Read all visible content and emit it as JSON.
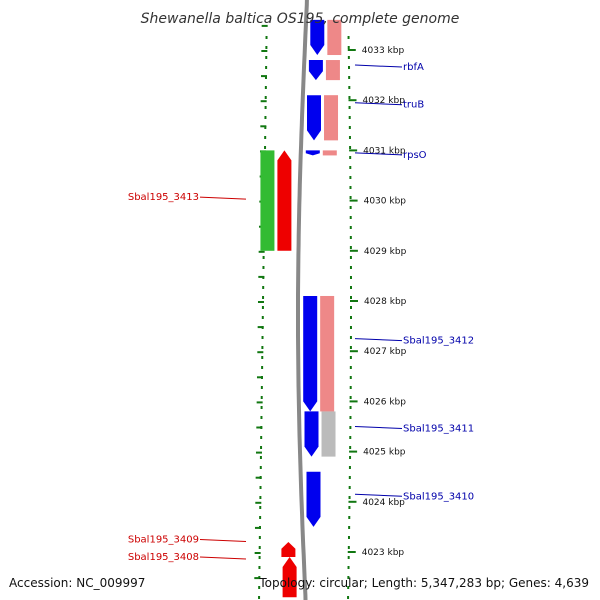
{
  "title": "Shewanella baltica OS195, complete genome",
  "footer": {
    "accession": "Accession: NC_009997",
    "summary": "Topology: circular; Length: 5,347,283 bp; Genes: 4,639"
  },
  "colors": {
    "forward_cds": "#ee0000",
    "forward_gene": "#33bb33",
    "reverse_cds": "#0000ee",
    "reverse_gene": "#ee8888",
    "reverse_other": "#bbbbbb",
    "backbone": "#888888",
    "dotted_ruler": "#117711",
    "forward_label": "#cc0000",
    "reverse_label": "#0000aa"
  },
  "axis": {
    "unit": "kbp",
    "ticks": [
      {
        "kbp": 4033,
        "label": "4033 kbp"
      },
      {
        "kbp": 4032,
        "label": "4032 kbp"
      },
      {
        "kbp": 4031,
        "label": "4031 kbp"
      },
      {
        "kbp": 4030,
        "label": "4030 kbp"
      },
      {
        "kbp": 4029,
        "label": "4029 kbp"
      },
      {
        "kbp": 4028,
        "label": "4028 kbp"
      },
      {
        "kbp": 4027,
        "label": "4027 kbp"
      },
      {
        "kbp": 4026,
        "label": "4026 kbp"
      },
      {
        "kbp": 4025,
        "label": "4025 kbp"
      },
      {
        "kbp": 4024,
        "label": "4024 kbp"
      },
      {
        "kbp": 4023,
        "label": "4023 kbp"
      }
    ]
  },
  "features": {
    "reverse": [
      {
        "name": "rbfA",
        "start_kbp": 4032.4,
        "end_kbp": 4032.8,
        "track": "cds"
      },
      {
        "name": "rbfA",
        "start_kbp": 4032.4,
        "end_kbp": 4032.8,
        "track": "gene"
      },
      {
        "name": "",
        "start_kbp": 4032.9,
        "end_kbp": 4033.6,
        "track": "cds"
      },
      {
        "name": "",
        "start_kbp": 4032.9,
        "end_kbp": 4033.6,
        "track": "gene"
      },
      {
        "name": "truB",
        "start_kbp": 4031.2,
        "end_kbp": 4032.1,
        "track": "cds"
      },
      {
        "name": "truB",
        "start_kbp": 4031.2,
        "end_kbp": 4032.1,
        "track": "gene"
      },
      {
        "name": "rpsO",
        "start_kbp": 4030.9,
        "end_kbp": 4031.0,
        "track": "cds"
      },
      {
        "name": "rpsO",
        "start_kbp": 4030.9,
        "end_kbp": 4031.0,
        "track": "gene"
      },
      {
        "name": "Sbal195_3412",
        "start_kbp": 4025.8,
        "end_kbp": 4028.1,
        "track": "cds"
      },
      {
        "name": "Sbal195_3412",
        "start_kbp": 4025.8,
        "end_kbp": 4028.1,
        "track": "gene"
      },
      {
        "name": "Sbal195_3411",
        "start_kbp": 4024.9,
        "end_kbp": 4025.8,
        "track": "cds"
      },
      {
        "name": "Sbal195_3411",
        "start_kbp": 4024.9,
        "end_kbp": 4025.8,
        "track": "other"
      },
      {
        "name": "Sbal195_3410",
        "start_kbp": 4023.5,
        "end_kbp": 4024.6,
        "track": "cds"
      }
    ],
    "forward": [
      {
        "name": "Sbal195_3413",
        "start_kbp": 4029.0,
        "end_kbp": 4031.0,
        "track": "gene"
      },
      {
        "name": "Sbal195_3413",
        "start_kbp": 4029.0,
        "end_kbp": 4031.0,
        "track": "cds"
      },
      {
        "name": "Sbal195_3409",
        "start_kbp": 4022.9,
        "end_kbp": 4023.2,
        "track": "cds"
      },
      {
        "name": "Sbal195_3408",
        "start_kbp": 4022.1,
        "end_kbp": 4022.9,
        "track": "cds"
      }
    ]
  },
  "labels": {
    "reverse": [
      {
        "name": "rbfA",
        "kbp": 4032.7
      },
      {
        "name": "truB",
        "kbp": 4031.95
      },
      {
        "name": "rpsO",
        "kbp": 4030.95
      },
      {
        "name": "Sbal195_3412",
        "kbp": 4027.25
      },
      {
        "name": "Sbal195_3411",
        "kbp": 4025.5
      },
      {
        "name": "Sbal195_3410",
        "kbp": 4024.15
      }
    ],
    "forward": [
      {
        "name": "Sbal195_3413",
        "kbp": 4030.07
      },
      {
        "name": "Sbal195_3409",
        "kbp": 4023.25
      },
      {
        "name": "Sbal195_3408",
        "kbp": 4022.9
      }
    ]
  }
}
